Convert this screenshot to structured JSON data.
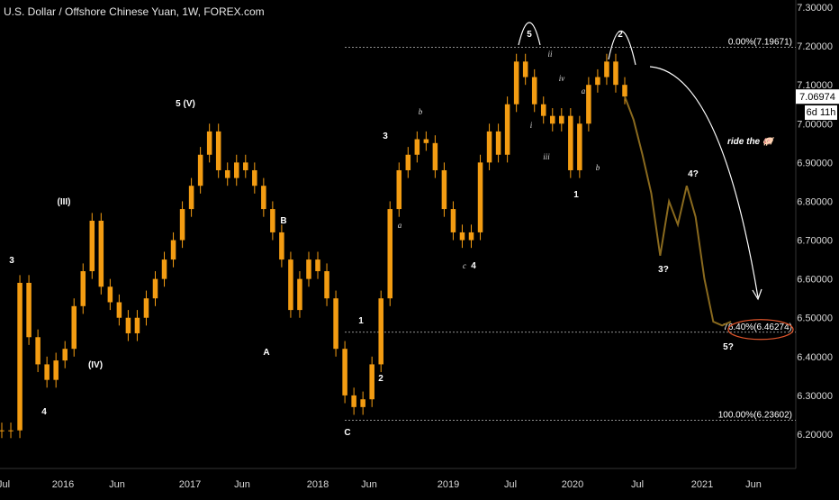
{
  "header": {
    "title": "U.S. Dollar / Offshore Chinese Yuan, 1W, FOREX.com"
  },
  "price_badge": {
    "value": "7.06974",
    "timer": "6d 11h"
  },
  "annotations": {
    "ride_text": "ride the 🐖"
  },
  "colors": {
    "candle": "#f39c12",
    "projection": "#8a6a1e",
    "background": "#000000",
    "grid_line": "#bfbfbf",
    "ellipse": "#e0552b"
  },
  "chart_data": {
    "type": "line",
    "title": "U.S. Dollar / Offshore Chinese Yuan, 1W, FOREX.com",
    "ylim": [
      6.12,
      7.32
    ],
    "y_ticks": [
      "7.30000",
      "7.20000",
      "7.10000",
      "7.00000",
      "6.90000",
      "6.80000",
      "6.70000",
      "6.60000",
      "6.50000",
      "6.40000",
      "6.30000",
      "6.20000"
    ],
    "x_ticks": [
      "Jul",
      "2016",
      "Jun",
      "2017",
      "Jun",
      "2018",
      "Jun",
      "2019",
      "Jul",
      "2020",
      "Jul",
      "2021",
      "Jun"
    ],
    "series": [
      {
        "values": [
          6.21,
          6.21,
          6.59,
          6.45,
          6.38,
          6.34,
          6.39,
          6.42,
          6.53,
          6.62,
          6.75,
          6.58,
          6.54,
          6.5,
          6.46,
          6.5,
          6.55,
          6.6,
          6.65,
          6.7,
          6.78,
          6.84,
          6.92,
          6.98,
          6.88,
          6.86,
          6.9,
          6.88,
          6.84,
          6.78,
          6.72,
          6.65,
          6.52,
          6.6,
          6.65,
          6.62,
          6.55,
          6.42,
          6.3,
          6.27,
          6.29,
          6.38,
          6.55,
          6.78,
          6.88,
          6.92,
          6.96,
          6.95,
          6.88,
          6.78,
          6.72,
          6.7,
          6.72,
          6.9,
          6.98,
          6.92,
          7.05,
          7.16,
          7.12,
          7.05,
          7.02,
          7.0,
          7.02,
          6.88,
          7.0,
          7.1,
          7.12,
          7.16,
          7.1,
          7.07
        ]
      },
      {
        "name": "Projection",
        "values": [
          7.07,
          7.01,
          6.92,
          6.82,
          6.66,
          6.8,
          6.74,
          6.84,
          6.76,
          6.6,
          6.49,
          6.48,
          6.49
        ]
      }
    ],
    "levels": [
      {
        "label": "0.00%(7.19671)",
        "value": 7.19671
      },
      {
        "label": "76.40%(6.46274)",
        "value": 6.46274
      },
      {
        "label": "100.00%(6.23602)",
        "value": 6.23602
      }
    ],
    "wave_labels": [
      "3",
      "(III)",
      "4",
      "(IV)",
      "5 (V)",
      "A",
      "B",
      "C",
      "1",
      "2",
      "3",
      "a",
      "b",
      "c",
      "4",
      "5",
      "i",
      "ii",
      "iii",
      "iv",
      "a",
      "b",
      "1",
      "2",
      "3?",
      "4?",
      "5?"
    ]
  }
}
